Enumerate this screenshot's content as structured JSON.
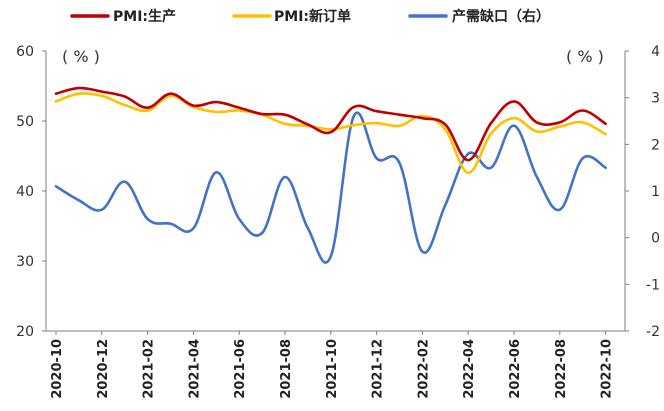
{
  "chart_data": {
    "type": "line",
    "title": "",
    "legend": [
      {
        "name": "PMI:生产",
        "color": "#c00000"
      },
      {
        "name": "PMI:新订单",
        "color": "#ffc000"
      },
      {
        "name": "产需缺口（右）",
        "color": "#4472c4"
      }
    ],
    "left_axis": {
      "unit": "( % )",
      "ylim": [
        20,
        60
      ],
      "ticks": [
        "20",
        "30",
        "40",
        "50",
        "60"
      ]
    },
    "right_axis": {
      "unit": "( % )",
      "ylim": [
        -2,
        4
      ],
      "ticks": [
        "-2",
        "-1",
        "0",
        "1",
        "2",
        "3",
        "4"
      ]
    },
    "x_labels": [
      "2020-10",
      "2020-12",
      "2021-02",
      "2021-04",
      "2021-06",
      "2021-08",
      "2021-10",
      "2021-12",
      "2022-02",
      "2022-04",
      "2022-06",
      "2022-08",
      "2022-10"
    ],
    "x_points": [
      "2020-10",
      "2020-11",
      "2020-12",
      "2021-01",
      "2021-02",
      "2021-03",
      "2021-04",
      "2021-05",
      "2021-06",
      "2021-07",
      "2021-08",
      "2021-09",
      "2021-10",
      "2021-11",
      "2021-12",
      "2022-01",
      "2022-02",
      "2022-03",
      "2022-04",
      "2022-05",
      "2022-06",
      "2022-07",
      "2022-08",
      "2022-09",
      "2022-10"
    ],
    "series": [
      {
        "name": "PMI:生产",
        "axis": "left",
        "color": "#c00000",
        "values": [
          53.9,
          54.7,
          54.2,
          53.5,
          51.9,
          53.9,
          52.2,
          52.7,
          51.9,
          51.0,
          50.9,
          49.5,
          48.4,
          52.0,
          51.4,
          50.9,
          50.4,
          49.5,
          44.4,
          49.7,
          52.8,
          49.8,
          49.8,
          51.5,
          49.6
        ]
      },
      {
        "name": "PMI:新订单",
        "axis": "left",
        "color": "#ffc000",
        "values": [
          52.8,
          53.9,
          53.6,
          52.3,
          51.5,
          53.6,
          52.0,
          51.3,
          51.5,
          50.9,
          49.6,
          49.3,
          48.8,
          49.4,
          49.7,
          49.3,
          50.7,
          48.8,
          42.6,
          48.2,
          50.4,
          48.5,
          49.2,
          49.8,
          48.1
        ]
      },
      {
        "name": "产需缺口（右）",
        "axis": "right",
        "color": "#4472c4",
        "values": [
          1.1,
          0.8,
          0.6,
          1.2,
          0.4,
          0.3,
          0.2,
          1.4,
          0.4,
          0.1,
          1.3,
          0.2,
          -0.4,
          2.6,
          1.7,
          1.6,
          -0.3,
          0.7,
          1.8,
          1.5,
          2.4,
          1.3,
          0.6,
          1.7,
          1.5
        ]
      }
    ]
  }
}
